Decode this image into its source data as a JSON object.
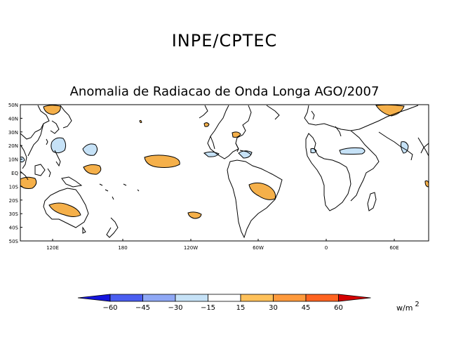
{
  "header": {
    "org_title": "INPE/CPTEC",
    "map_title": "Anomalia de Radiacao de Onda Longa AGO/2007"
  },
  "map": {
    "lat_labels": [
      "50N",
      "40N",
      "30N",
      "20N",
      "10N",
      "EQ",
      "10S",
      "20S",
      "30S",
      "40S",
      "50S"
    ],
    "lon_labels": [
      "120E",
      "180",
      "120W",
      "60W",
      "0",
      "60E"
    ],
    "positive_color": "#f5b04a",
    "negative_color": "#c6e2f7",
    "outline_color": "#000000"
  },
  "colorbar": {
    "values": [
      "-60",
      "-45",
      "-30",
      "-15",
      "15",
      "30",
      "45",
      "60"
    ],
    "colors": [
      "#1515dc",
      "#4a5ef0",
      "#8fa8f5",
      "#c6e2f7",
      "#ffffff",
      "#ffc15a",
      "#ff9a3c",
      "#ff6420",
      "#d40000"
    ],
    "units_base": "w/m",
    "units_exp": "2"
  }
}
